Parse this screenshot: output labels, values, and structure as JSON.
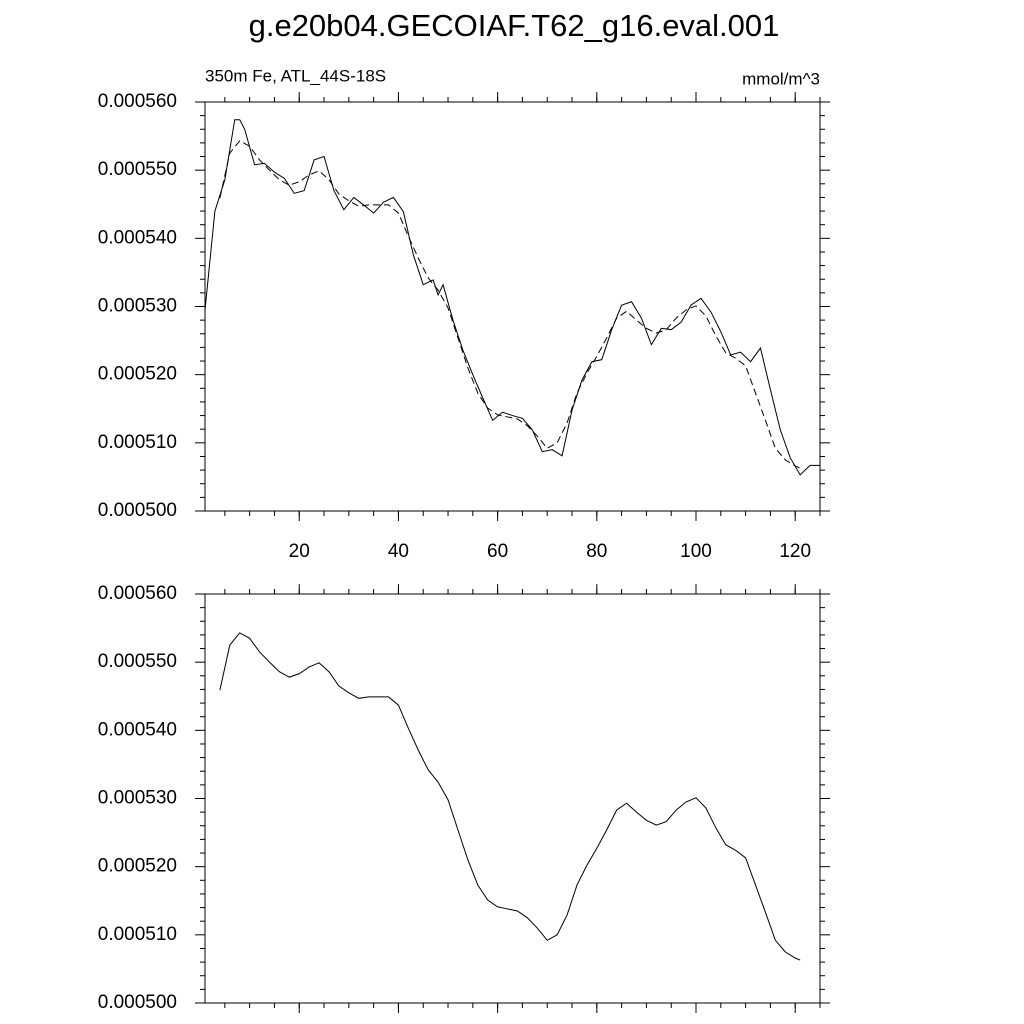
{
  "chart_data": [
    {
      "type": "line",
      "title": "g.e20b04.GECOIAF.T62_g16.eval.001",
      "left_string": "350m Fe, ATL_44S-18S",
      "right_string": "mmol/m^3",
      "xlim": [
        1,
        125
      ],
      "xticks": [
        20,
        40,
        60,
        80,
        100,
        120
      ],
      "xtick_labels": true,
      "ylim": [
        0.0005,
        0.00056
      ],
      "yticks": [
        {
          "value": 0.0005,
          "label": "0.000500"
        },
        {
          "value": 0.00051,
          "label": "0.000510"
        },
        {
          "value": 0.00052,
          "label": "0.000520"
        },
        {
          "value": 0.00053,
          "label": "0.000530"
        },
        {
          "value": 0.00054,
          "label": "0.000540"
        },
        {
          "value": 0.00055,
          "label": "0.000550"
        },
        {
          "value": 0.00056,
          "label": "0.000560"
        }
      ],
      "series": [
        {
          "color": "#000000",
          "dash": false,
          "x": [
            1,
            3,
            5,
            7,
            8,
            9,
            11,
            13,
            15,
            17,
            19,
            21,
            23,
            25,
            27,
            29,
            31,
            33,
            35,
            37,
            39,
            41,
            43,
            45,
            47,
            48,
            49,
            51,
            53,
            55,
            57,
            59,
            61,
            63,
            65,
            67,
            69,
            71,
            73,
            75,
            77,
            79,
            81,
            83,
            85,
            87,
            89,
            91,
            93,
            95,
            97,
            99,
            101,
            103,
            105,
            107,
            109,
            111,
            113,
            115,
            117,
            119,
            121,
            123,
            125
          ],
          "values": [
            0.0005295,
            0.000544,
            0.0005486,
            0.0005574,
            0.0005574,
            0.000556,
            0.0005508,
            0.000551,
            0.0005497,
            0.0005488,
            0.0005466,
            0.000547,
            0.0005515,
            0.000552,
            0.000547,
            0.0005442,
            0.000546,
            0.0005449,
            0.0005437,
            0.0005453,
            0.000546,
            0.0005439,
            0.0005376,
            0.0005332,
            0.0005339,
            0.0005317,
            0.0005332,
            0.000528,
            0.0005236,
            0.00052,
            0.0005166,
            0.0005133,
            0.0005145,
            0.000514,
            0.0005136,
            0.0005119,
            0.0005087,
            0.000509,
            0.0005081,
            0.0005148,
            0.0005192,
            0.0005219,
            0.0005222,
            0.0005266,
            0.0005302,
            0.0005307,
            0.0005283,
            0.0005244,
            0.0005268,
            0.0005266,
            0.0005277,
            0.0005302,
            0.0005312,
            0.0005292,
            0.0005263,
            0.0005229,
            0.0005233,
            0.0005219,
            0.0005239,
            0.0005178,
            0.0005119,
            0.0005078,
            0.0005053,
            0.0005067,
            0.0005067
          ]
        },
        {
          "color": "#000000",
          "dash": true,
          "x": [
            4,
            6,
            8,
            10,
            12,
            14,
            16,
            18,
            20,
            22,
            24,
            26,
            28,
            30,
            32,
            34,
            36,
            38,
            40,
            42,
            44,
            46,
            48,
            50,
            52,
            54,
            56,
            58,
            60,
            62,
            64,
            66,
            68,
            70,
            72,
            74,
            76,
            78,
            80,
            82,
            84,
            86,
            88,
            90,
            92,
            94,
            96,
            98,
            100,
            102,
            104,
            106,
            108,
            110,
            112,
            114,
            116,
            118,
            120,
            121
          ],
          "values": [
            0.0005459,
            0.0005525,
            0.0005543,
            0.0005535,
            0.0005515,
            0.00055,
            0.0005486,
            0.0005478,
            0.0005483,
            0.0005493,
            0.0005499,
            0.0005486,
            0.0005465,
            0.0005455,
            0.0005447,
            0.0005449,
            0.0005449,
            0.0005449,
            0.0005437,
            0.0005403,
            0.0005371,
            0.0005342,
            0.0005324,
            0.0005298,
            0.0005254,
            0.000521,
            0.0005173,
            0.0005151,
            0.0005141,
            0.0005138,
            0.0005135,
            0.0005125,
            0.000511,
            0.0005092,
            0.00051,
            0.0005129,
            0.0005173,
            0.0005202,
            0.0005227,
            0.0005254,
            0.0005283,
            0.0005293,
            0.000528,
            0.0005268,
            0.0005261,
            0.0005266,
            0.0005283,
            0.0005295,
            0.0005301,
            0.0005286,
            0.0005257,
            0.0005232,
            0.0005224,
            0.0005213,
            0.0005173,
            0.0005133,
            0.0005092,
            0.0005075,
            0.0005066,
            0.0005063
          ]
        }
      ]
    },
    {
      "type": "line",
      "xlim": [
        1,
        125
      ],
      "xticks": [
        20,
        40,
        60,
        80,
        100,
        120
      ],
      "xtick_labels": false,
      "ylim": [
        0.0005,
        0.00056
      ],
      "yticks": [
        {
          "value": 0.0005,
          "label": "0.000500"
        },
        {
          "value": 0.00051,
          "label": "0.000510"
        },
        {
          "value": 0.00052,
          "label": "0.000520"
        },
        {
          "value": 0.00053,
          "label": "0.000530"
        },
        {
          "value": 0.00054,
          "label": "0.000540"
        },
        {
          "value": 0.00055,
          "label": "0.000550"
        },
        {
          "value": 0.00056,
          "label": "0.000560"
        }
      ],
      "series": [
        {
          "color": "#000000",
          "dash": false,
          "x": [
            4,
            6,
            8,
            10,
            12,
            14,
            16,
            18,
            20,
            22,
            24,
            26,
            28,
            30,
            32,
            34,
            36,
            38,
            40,
            42,
            44,
            46,
            48,
            50,
            52,
            54,
            56,
            58,
            60,
            62,
            64,
            66,
            68,
            70,
            72,
            74,
            76,
            78,
            80,
            82,
            84,
            86,
            88,
            90,
            92,
            94,
            96,
            98,
            100,
            102,
            104,
            106,
            108,
            110,
            112,
            114,
            116,
            118,
            120,
            121
          ],
          "values": [
            0.0005459,
            0.0005525,
            0.0005543,
            0.0005535,
            0.0005515,
            0.00055,
            0.0005486,
            0.0005478,
            0.0005483,
            0.0005493,
            0.0005499,
            0.0005486,
            0.0005465,
            0.0005455,
            0.0005447,
            0.0005449,
            0.0005449,
            0.0005449,
            0.0005437,
            0.0005403,
            0.0005371,
            0.0005342,
            0.0005324,
            0.0005298,
            0.0005254,
            0.000521,
            0.0005173,
            0.0005151,
            0.0005141,
            0.0005138,
            0.0005135,
            0.0005125,
            0.000511,
            0.0005092,
            0.00051,
            0.0005129,
            0.0005173,
            0.0005202,
            0.0005227,
            0.0005254,
            0.0005283,
            0.0005293,
            0.000528,
            0.0005268,
            0.0005261,
            0.0005266,
            0.0005283,
            0.0005295,
            0.0005301,
            0.0005286,
            0.0005257,
            0.0005232,
            0.0005224,
            0.0005213,
            0.0005173,
            0.0005133,
            0.0005092,
            0.0005075,
            0.0005066,
            0.0005063
          ]
        }
      ]
    }
  ]
}
